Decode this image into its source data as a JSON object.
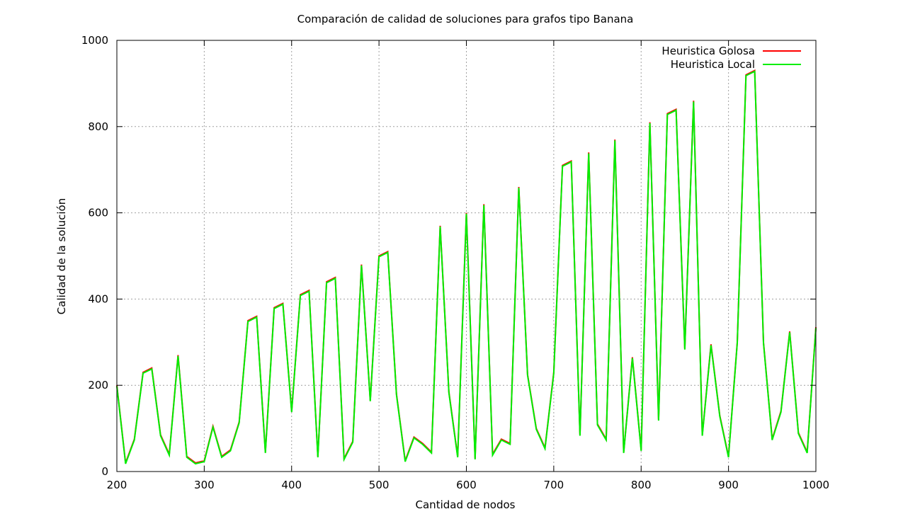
{
  "chart_data": {
    "type": "line",
    "title": "Comparación de calidad de soluciones para grafos tipo Banana",
    "xlabel": "Cantidad de nodos",
    "ylabel": "Calidad de la solución",
    "xlim": [
      200,
      1000
    ],
    "ylim": [
      0,
      1000
    ],
    "xticks": [
      200,
      300,
      400,
      500,
      600,
      700,
      800,
      900,
      1000
    ],
    "yticks": [
      0,
      200,
      400,
      600,
      800,
      1000
    ],
    "grid": true,
    "legend_position": "top-right",
    "series": [
      {
        "name": "Heuristica Golosa",
        "color": "#ff0000",
        "x": [
          200,
          210,
          220,
          230,
          240,
          250,
          260,
          270,
          280,
          290,
          300,
          310,
          320,
          330,
          340,
          350,
          360,
          370,
          380,
          390,
          400,
          410,
          420,
          430,
          440,
          450,
          460,
          470,
          480,
          490,
          500,
          510,
          520,
          530,
          540,
          550,
          560,
          570,
          580,
          590,
          600,
          610,
          620,
          630,
          640,
          650,
          660,
          670,
          680,
          690,
          700,
          710,
          720,
          730,
          740,
          750,
          760,
          770,
          780,
          790,
          800,
          810,
          820,
          830,
          840,
          850,
          860,
          870,
          880,
          890,
          900,
          910,
          920,
          930,
          940,
          950,
          960,
          970,
          980,
          990,
          1000
        ],
        "y": [
          200,
          20,
          75,
          230,
          240,
          85,
          40,
          270,
          35,
          20,
          25,
          105,
          35,
          50,
          115,
          350,
          360,
          45,
          380,
          390,
          140,
          410,
          420,
          35,
          440,
          450,
          30,
          70,
          480,
          165,
          500,
          510,
          180,
          25,
          80,
          65,
          45,
          570,
          185,
          35,
          600,
          30,
          620,
          40,
          75,
          65,
          660,
          225,
          100,
          55,
          230,
          710,
          720,
          85,
          740,
          110,
          75,
          770,
          45,
          265,
          50,
          810,
          120,
          830,
          840,
          285,
          860,
          85,
          295,
          130,
          35,
          300,
          920,
          930,
          300,
          75,
          140,
          325,
          90,
          45,
          335
        ]
      },
      {
        "name": "Heuristica Local",
        "color": "#00ee00",
        "x": [
          200,
          210,
          220,
          230,
          240,
          250,
          260,
          270,
          280,
          290,
          300,
          310,
          320,
          330,
          340,
          350,
          360,
          370,
          380,
          390,
          400,
          410,
          420,
          430,
          440,
          450,
          460,
          470,
          480,
          490,
          500,
          510,
          520,
          530,
          540,
          550,
          560,
          570,
          580,
          590,
          600,
          610,
          620,
          630,
          640,
          650,
          660,
          670,
          680,
          690,
          700,
          710,
          720,
          730,
          740,
          750,
          760,
          770,
          780,
          790,
          800,
          810,
          820,
          830,
          840,
          850,
          860,
          870,
          880,
          890,
          900,
          910,
          920,
          930,
          940,
          950,
          960,
          970,
          980,
          990,
          1000
        ],
        "y": [
          198,
          18,
          73,
          228,
          238,
          83,
          38,
          268,
          33,
          18,
          23,
          103,
          33,
          48,
          113,
          348,
          358,
          43,
          378,
          388,
          138,
          408,
          418,
          33,
          438,
          448,
          28,
          68,
          478,
          163,
          498,
          508,
          178,
          23,
          78,
          63,
          43,
          568,
          183,
          33,
          598,
          28,
          618,
          38,
          73,
          63,
          658,
          223,
          98,
          53,
          228,
          708,
          718,
          83,
          738,
          108,
          73,
          768,
          43,
          263,
          48,
          808,
          118,
          828,
          838,
          283,
          858,
          83,
          293,
          128,
          33,
          298,
          918,
          928,
          298,
          73,
          138,
          323,
          88,
          43,
          333
        ]
      }
    ]
  }
}
